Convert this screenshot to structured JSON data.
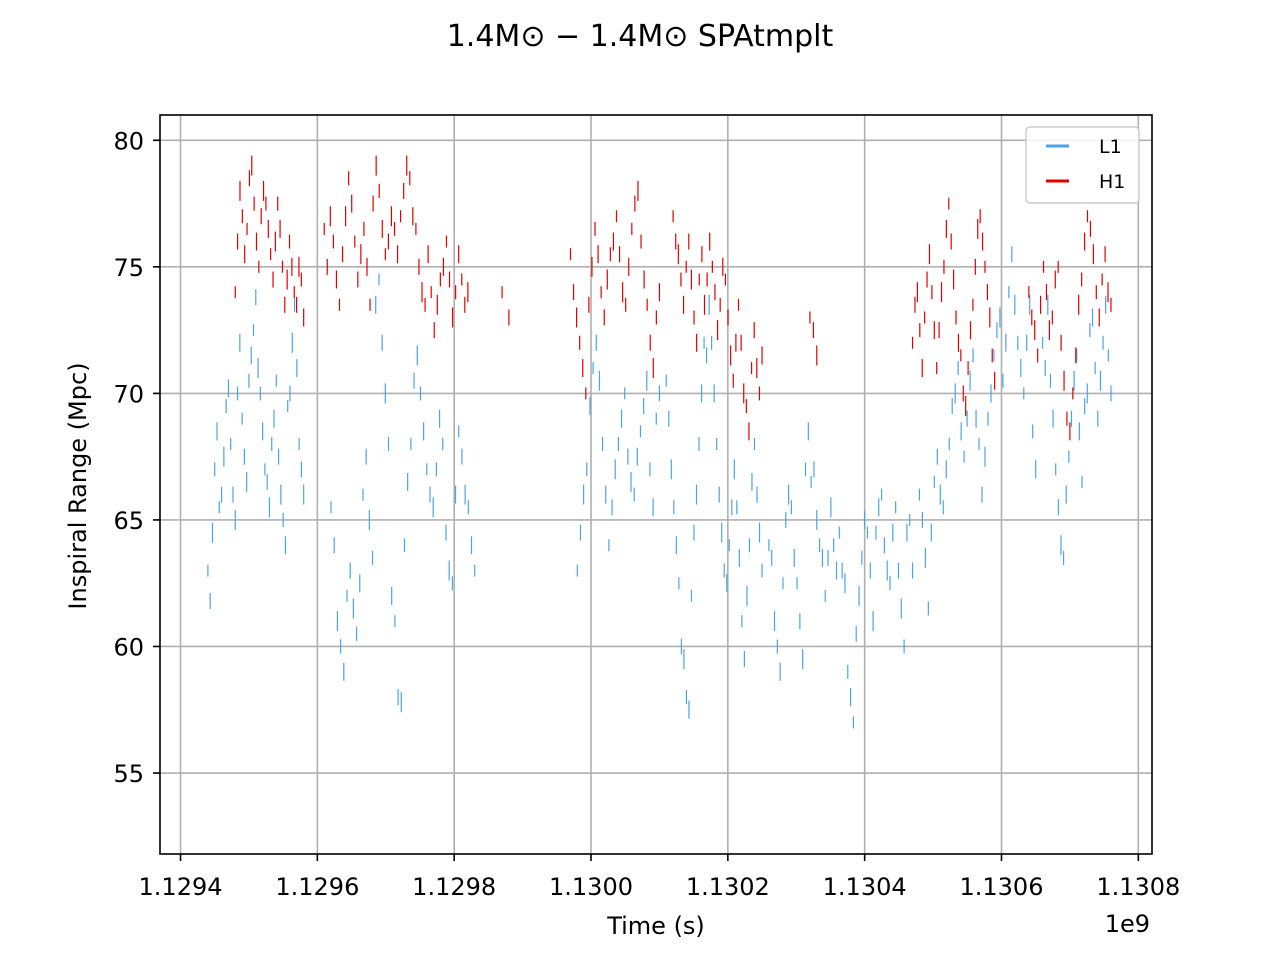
{
  "chart_data": {
    "type": "scatter",
    "title": "1.4M⊙ − 1.4M⊙ SPAtmplt",
    "xlabel": "Time (s)",
    "ylabel": "Inspiral Range (Mpc)",
    "x_offset_label": "1e9",
    "xlim": [
      1.12937,
      1.13082
    ],
    "ylim": [
      51.8,
      81.0
    ],
    "xticks": [
      1.1294,
      1.1296,
      1.1298,
      1.13,
      1.1302,
      1.1304,
      1.1306,
      1.1308
    ],
    "xtick_labels": [
      "1.1294",
      "1.1296",
      "1.1298",
      "1.1300",
      "1.1302",
      "1.1304",
      "1.1306",
      "1.1308"
    ],
    "yticks": [
      55,
      60,
      65,
      70,
      75,
      80
    ],
    "ytick_labels": [
      "55",
      "60",
      "65",
      "70",
      "75",
      "80"
    ],
    "grid": true,
    "legend_position": "top-right",
    "series": [
      {
        "name": "L1",
        "color": "#4ba3e8",
        "marker": "vertical-dash",
        "segments": [
          {
            "x_start": 1.12944,
            "x_end": 1.12958,
            "values": [
              63.0,
              61.8,
              64.5,
              67.0,
              68.5,
              65.5,
              66.0,
              67.5,
              69.5,
              70.2,
              68.0,
              66.0,
              65.0,
              70.0,
              72.0,
              69.0,
              67.5,
              66.5,
              70.5,
              71.5,
              72.5,
              73.8,
              71.0,
              70.0,
              68.5,
              67.0,
              66.5,
              65.5,
              68.0,
              69.0,
              70.5,
              67.5,
              66.0,
              65.0,
              64.0,
              69.5,
              70.0,
              72.0,
              73.5,
              71.0,
              68.0,
              67.0,
              66.0
            ]
          },
          {
            "x_start": 1.12962,
            "x_end": 1.12983,
            "values": [
              65.5,
              64.0,
              61.0,
              60.0,
              59.0,
              62.0,
              63.0,
              61.5,
              60.5,
              62.5,
              66.0,
              67.5,
              65.0,
              63.5,
              73.5,
              74.5,
              72.0,
              70.0,
              68.0,
              62.0,
              61.0,
              58.0,
              57.8,
              64.0,
              66.5,
              68.0,
              70.5,
              71.5,
              70.0,
              68.5,
              67.0,
              66.0,
              65.5,
              67.0,
              69.0,
              68.0,
              64.5,
              63.0,
              62.5,
              66.0,
              68.5,
              67.5,
              66.0,
              65.5,
              64.0,
              63.0
            ]
          },
          {
            "x_start": 1.12998,
            "x_end": 1.1301,
            "values": [
              63.0,
              64.5,
              66.0,
              67.0,
              69.5,
              71.0,
              72.0,
              70.5,
              68.0,
              66.0,
              64.0,
              65.5,
              67.0,
              68.0,
              69.0,
              70.0,
              67.5,
              66.5,
              66.0,
              67.5,
              68.5,
              69.5,
              70.5,
              67.0,
              65.5,
              69.0,
              70.0
            ]
          },
          {
            "x_start": 1.13011,
            "x_end": 1.13025,
            "values": [
              70.5,
              69.0,
              67.0,
              65.5,
              64.0,
              62.5,
              60.0,
              59.5,
              58.0,
              57.5,
              62.0,
              64.5,
              66.0,
              68.0,
              70.0,
              72.0,
              71.5,
              73.5,
              72.0,
              70.0,
              68.0,
              66.0,
              64.5,
              63.0,
              62.5,
              64.0,
              65.5,
              67.0,
              65.5,
              63.5,
              61.0,
              59.5,
              62.0,
              64.0,
              66.5,
              68.0,
              66.0,
              64.5,
              63.0
            ]
          },
          {
            "x_start": 1.13026,
            "x_end": 1.13047,
            "values": [
              64.0,
              63.5,
              61.0,
              60.0,
              59.0,
              62.5,
              65.0,
              66.0,
              65.5,
              63.5,
              62.5,
              61.0,
              59.5,
              67.0,
              68.5,
              66.5,
              67.0,
              65.0,
              64.0,
              63.5,
              62.0,
              63.5,
              65.5,
              64.0,
              63.0,
              64.5,
              63.0,
              62.5,
              59.0,
              58.0,
              57.0,
              60.5,
              62.0,
              63.5,
              65.0,
              64.5,
              63.0,
              61.0,
              64.5,
              65.5,
              66.0,
              64.0,
              63.0,
              62.5,
              64.5,
              65.5,
              63.0,
              61.5,
              60.0,
              64.5,
              65.0,
              63.0
            ]
          },
          {
            "x_start": 1.13048,
            "x_end": 1.13065,
            "values": [
              66.0,
              65.0,
              63.5,
              61.5,
              64.5,
              66.5,
              67.5,
              66.0,
              65.5,
              67.0,
              68.0,
              69.5,
              70.0,
              71.0,
              68.5,
              67.5,
              69.0,
              70.5,
              71.5,
              69.0,
              68.0,
              66.0,
              67.5,
              69.0,
              70.0,
              71.5,
              72.5,
              73.0,
              70.5,
              72.0,
              74.0,
              75.5,
              73.5,
              72.0,
              71.0,
              70.0,
              72.0,
              73.5,
              68.5,
              67.0
            ]
          },
          {
            "x_start": 1.13066,
            "x_end": 1.13076,
            "values": [
              72.0,
              71.0,
              73.5,
              70.5,
              69.0,
              67.0,
              65.5,
              64.0,
              63.5,
              66.0,
              67.5,
              69.0,
              70.5,
              71.5,
              68.5,
              66.5,
              69.5,
              70.0,
              72.5,
              73.0,
              71.0,
              69.0,
              70.5,
              72.0,
              73.5,
              71.5,
              70.0
            ]
          }
        ]
      },
      {
        "name": "H1",
        "color": "#e00000",
        "marker": "vertical-dash",
        "segments": [
          {
            "x_start": 1.12948,
            "x_end": 1.12958,
            "values": [
              74.0,
              76.0,
              78.0,
              77.0,
              75.5,
              76.5,
              78.5,
              79.0,
              77.5,
              76.0,
              75.0,
              77.0,
              78.0,
              77.5,
              76.5,
              75.5,
              74.5,
              76.0,
              77.5,
              76.5,
              75.0,
              73.5,
              74.5,
              76.0,
              75.0,
              74.0,
              73.5,
              75.0,
              74.5,
              73.0
            ]
          },
          {
            "x_start": 1.12961,
            "x_end": 1.12982,
            "values": [
              76.5,
              75.0,
              77.0,
              76.0,
              74.5,
              73.5,
              75.5,
              77.0,
              78.5,
              77.5,
              76.0,
              74.5,
              75.5,
              76.5,
              75.0,
              73.5,
              77.5,
              79.0,
              78.0,
              76.5,
              75.5,
              76.0,
              77.0,
              76.5,
              75.5,
              77.0,
              78.0,
              79.0,
              78.5,
              77.0,
              76.5,
              75.0,
              74.0,
              73.5,
              75.5,
              74.0,
              72.5,
              73.5,
              74.5,
              75.0,
              76.0,
              74.5,
              73.0,
              74.0,
              75.5,
              74.5,
              73.5,
              74.0
            ]
          },
          {
            "x_start": 1.12987,
            "x_end": 1.12988,
            "values": [
              74.0,
              73.0
            ]
          },
          {
            "x_start": 1.12997,
            "x_end": 1.1301,
            "values": [
              75.5,
              74.0,
              73.0,
              72.0,
              71.0,
              70.0,
              73.5,
              75.0,
              76.5,
              75.5,
              74.0,
              73.0,
              74.5,
              75.5,
              76.0,
              77.0,
              75.5,
              74.0,
              73.5,
              75.0,
              76.5,
              77.5,
              78.0,
              76.0,
              74.5,
              73.5,
              72.0,
              71.0,
              73.0,
              74.0
            ]
          },
          {
            "x_start": 1.13012,
            "x_end": 1.13025,
            "values": [
              77.0,
              76.0,
              75.5,
              74.5,
              73.5,
              75.0,
              76.0,
              74.5,
              73.0,
              72.0,
              74.5,
              75.5,
              73.5,
              74.5,
              76.0,
              75.0,
              74.0,
              72.5,
              73.5,
              75.0,
              74.5,
              73.0,
              71.5,
              70.5,
              72.0,
              73.5,
              72.0,
              70.0,
              69.5,
              68.5,
              71.0,
              72.5,
              71.0,
              70.0,
              71.5
            ]
          },
          {
            "x_start": 1.13032,
            "x_end": 1.13033,
            "values": [
              73.0,
              72.5,
              71.5
            ]
          },
          {
            "x_start": 1.13047,
            "x_end": 1.13059,
            "values": [
              72.0,
              73.5,
              74.0,
              72.5,
              71.0,
              73.0,
              74.5,
              75.5,
              74.0,
              72.5,
              71.0,
              72.5,
              74.0,
              75.0,
              76.5,
              77.5,
              76.0,
              74.5,
              73.0,
              72.0,
              71.5,
              70.0,
              69.5,
              71.0,
              72.5,
              73.5,
              75.0,
              76.5,
              77.0,
              76.0,
              75.0,
              74.0,
              73.0,
              71.5,
              70.5
            ]
          },
          {
            "x_start": 1.13064,
            "x_end": 1.13076,
            "values": [
              74.0,
              73.0,
              72.5,
              71.5,
              73.5,
              75.0,
              74.0,
              72.5,
              73.0,
              74.5,
              75.0,
              72.0,
              70.5,
              69.0,
              68.5,
              70.0,
              71.5,
              73.5,
              74.5,
              76.0,
              77.0,
              76.5,
              75.5,
              74.0,
              73.0,
              74.5,
              75.5,
              74.0,
              73.5
            ]
          }
        ]
      }
    ]
  }
}
